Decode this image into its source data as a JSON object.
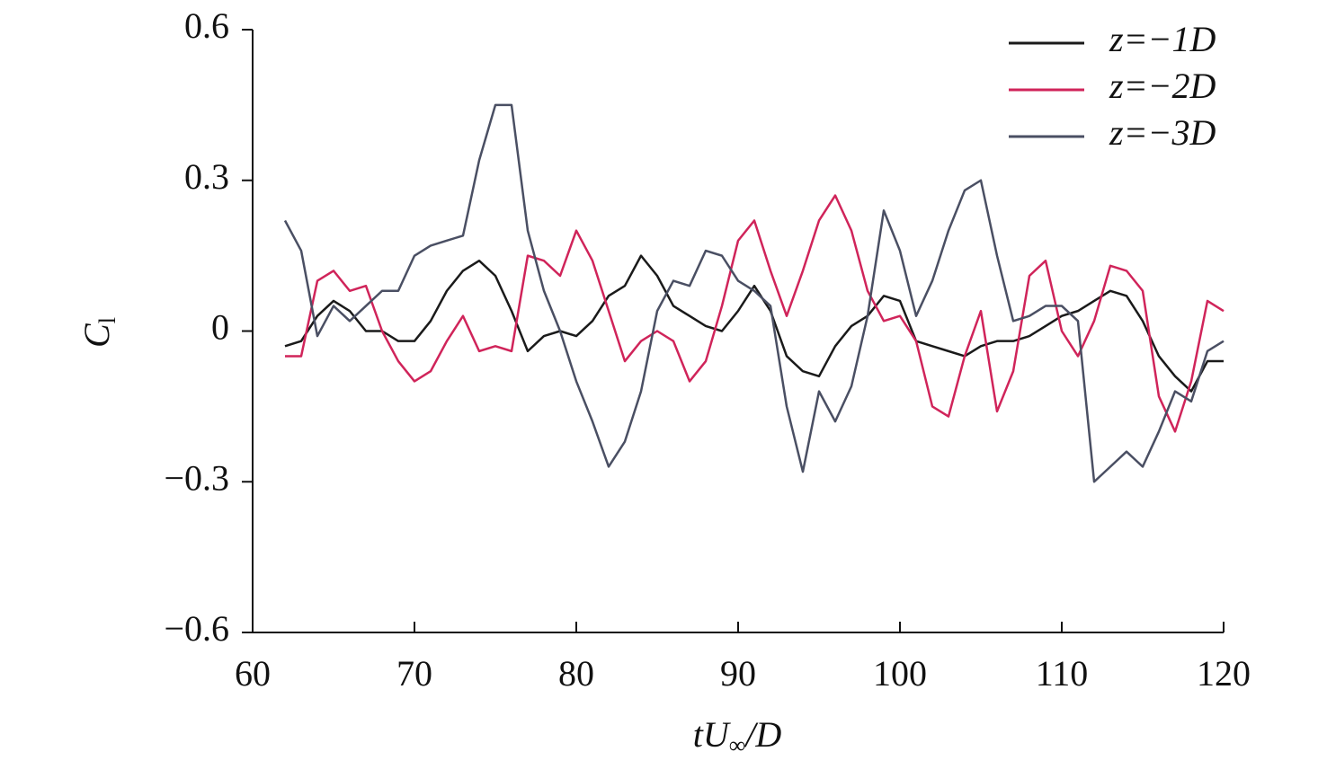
{
  "chart_data": {
    "type": "line",
    "xlabel": {
      "main": "tU",
      "sub": "∞",
      "tail": "/D"
    },
    "ylabel": {
      "main": "C",
      "sub": "l"
    },
    "xlim": [
      60,
      120
    ],
    "ylim": [
      -0.6,
      0.6
    ],
    "xticks": [
      60,
      70,
      80,
      90,
      100,
      110,
      120
    ],
    "yticks": [
      {
        "value": -0.6,
        "label": "−0.6"
      },
      {
        "value": -0.3,
        "label": "−0.3"
      },
      0,
      0.3,
      0.6
    ],
    "legend": "upper right",
    "x": [
      62,
      63,
      64,
      65,
      66,
      67,
      68,
      69,
      70,
      71,
      72,
      73,
      74,
      75,
      76,
      77,
      78,
      79,
      80,
      81,
      82,
      83,
      84,
      85,
      86,
      87,
      88,
      89,
      90,
      91,
      92,
      93,
      94,
      95,
      96,
      97,
      98,
      99,
      100,
      101,
      102,
      103,
      104,
      105,
      106,
      107,
      108,
      109,
      110,
      111,
      112,
      113,
      114,
      115,
      116,
      117,
      118,
      119,
      120
    ],
    "series": [
      {
        "name": "z=−1D",
        "color": "#1a1a1a",
        "values": [
          -0.03,
          -0.02,
          0.03,
          0.06,
          0.04,
          0.0,
          0.0,
          -0.02,
          -0.02,
          0.02,
          0.08,
          0.12,
          0.14,
          0.11,
          0.04,
          -0.04,
          -0.01,
          0.0,
          -0.01,
          0.02,
          0.07,
          0.09,
          0.15,
          0.11,
          0.05,
          0.03,
          0.01,
          0.0,
          0.04,
          0.09,
          0.04,
          -0.05,
          -0.08,
          -0.09,
          -0.03,
          0.01,
          0.03,
          0.07,
          0.06,
          -0.02,
          -0.03,
          -0.04,
          -0.05,
          -0.03,
          -0.02,
          -0.02,
          -0.01,
          0.01,
          0.03,
          0.04,
          0.06,
          0.08,
          0.07,
          0.02,
          -0.05,
          -0.09,
          -0.12,
          -0.06,
          -0.06
        ]
      },
      {
        "name": "z=−2D",
        "color": "#d0245a",
        "values": [
          -0.05,
          -0.05,
          0.1,
          0.12,
          0.08,
          0.09,
          0.0,
          -0.06,
          -0.1,
          -0.08,
          -0.02,
          0.03,
          -0.04,
          -0.03,
          -0.04,
          0.15,
          0.14,
          0.11,
          0.2,
          0.14,
          0.04,
          -0.06,
          -0.02,
          0.0,
          -0.02,
          -0.1,
          -0.06,
          0.05,
          0.18,
          0.22,
          0.12,
          0.03,
          0.12,
          0.22,
          0.27,
          0.2,
          0.08,
          0.02,
          0.03,
          -0.02,
          -0.15,
          -0.17,
          -0.05,
          0.04,
          -0.16,
          -0.08,
          0.11,
          0.14,
          0.0,
          -0.05,
          0.02,
          0.13,
          0.12,
          0.08,
          -0.13,
          -0.2,
          -0.1,
          0.06,
          0.04
        ]
      },
      {
        "name": "z=−3D",
        "color": "#4a4f63",
        "values": [
          0.22,
          0.16,
          -0.01,
          0.05,
          0.02,
          0.05,
          0.08,
          0.08,
          0.15,
          0.17,
          0.18,
          0.19,
          0.34,
          0.45,
          0.45,
          0.2,
          0.08,
          0.0,
          -0.1,
          -0.18,
          -0.27,
          -0.22,
          -0.12,
          0.04,
          0.1,
          0.09,
          0.16,
          0.15,
          0.1,
          0.08,
          0.05,
          -0.15,
          -0.28,
          -0.12,
          -0.18,
          -0.11,
          0.03,
          0.24,
          0.16,
          0.03,
          0.1,
          0.2,
          0.28,
          0.3,
          0.15,
          0.02,
          0.03,
          0.05,
          0.05,
          0.02,
          -0.3,
          -0.27,
          -0.24,
          -0.27,
          -0.2,
          -0.12,
          -0.14,
          -0.04,
          -0.02
        ]
      }
    ]
  }
}
